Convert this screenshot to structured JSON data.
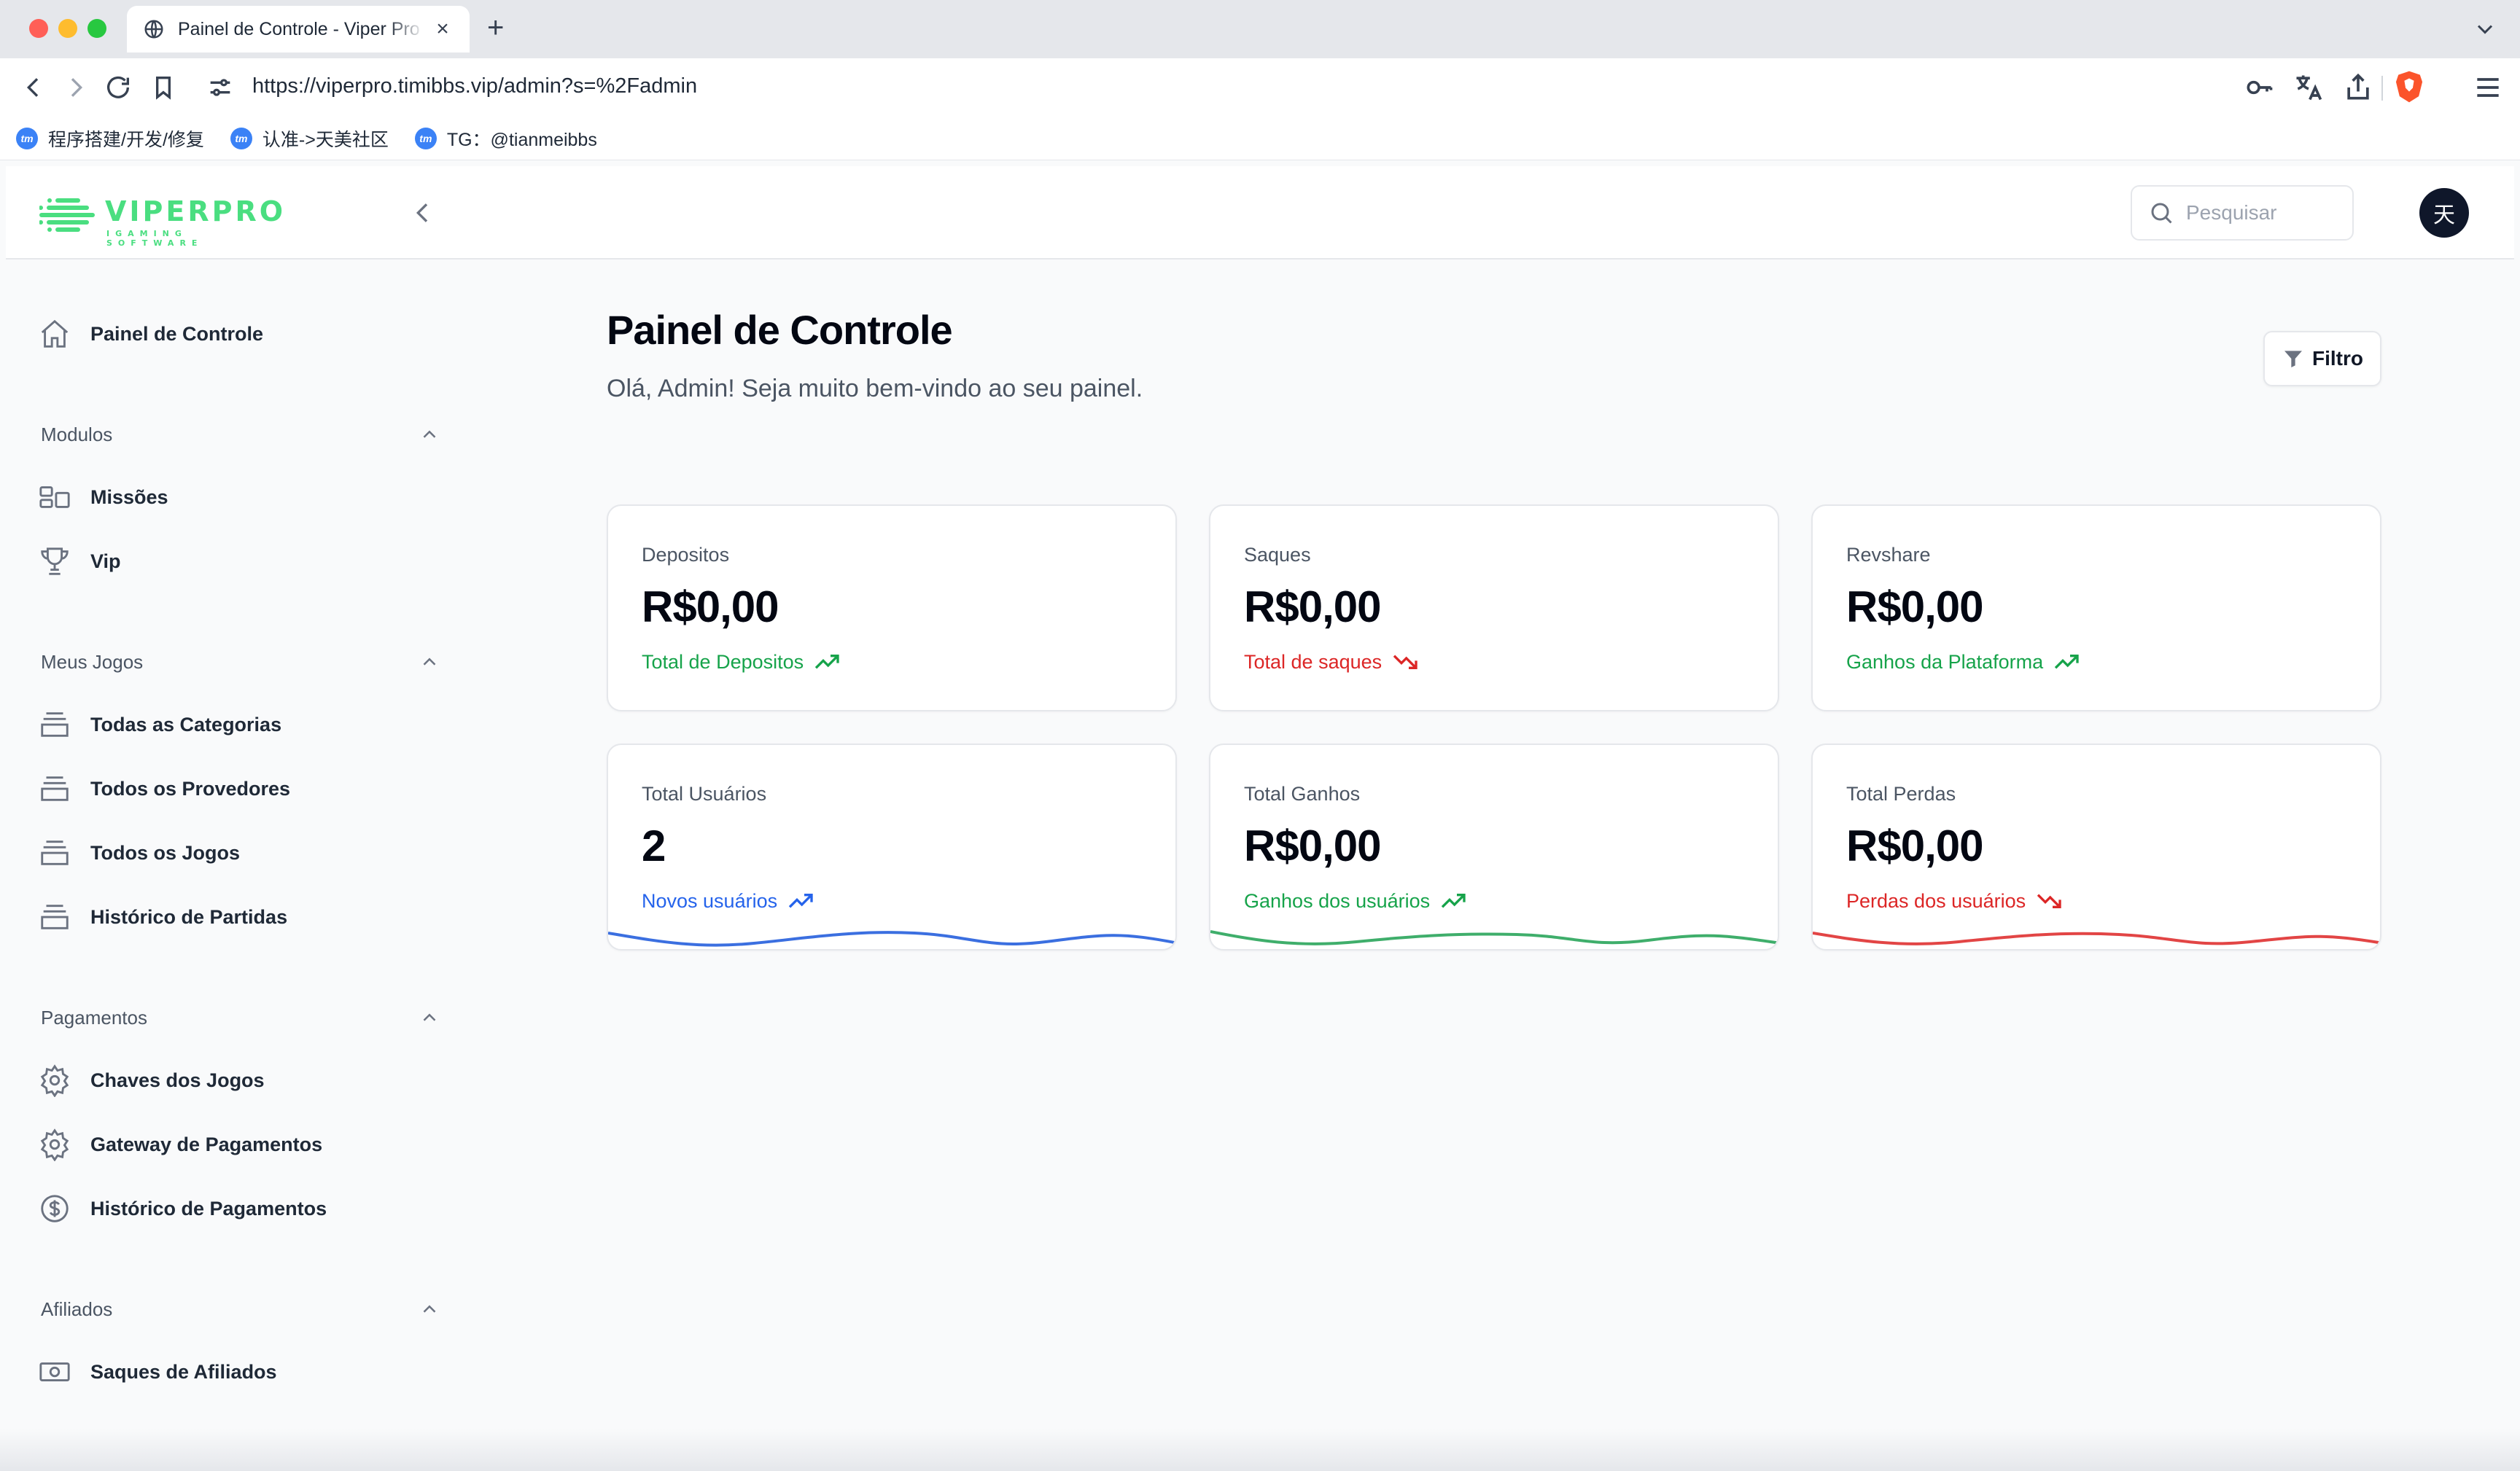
{
  "browser": {
    "tab_title": "Painel de Controle - Viper Pro",
    "new_tab": "+",
    "close": "×",
    "url": "https://viperpro.timibbs.vip/admin?s=%2Fadmin",
    "bookmarks": [
      {
        "label": "程序搭建/开发/修复"
      },
      {
        "label": "认准->天美社区"
      },
      {
        "label": "TG：@tianmeibbs"
      }
    ]
  },
  "header": {
    "logo_text": "VIPERPRO",
    "logo_sub": "IGAMING SOFTWARE",
    "search_placeholder": "Pesquisar",
    "avatar_initial": "天"
  },
  "sidebar": {
    "dashboard": "Painel de Controle",
    "sections": [
      {
        "title": "Modulos",
        "items": [
          "Missões",
          "Vip"
        ]
      },
      {
        "title": "Meus Jogos",
        "items": [
          "Todas as Categorias",
          "Todos os Provedores",
          "Todos os Jogos",
          "Histórico de Partidas"
        ]
      },
      {
        "title": "Pagamentos",
        "items": [
          "Chaves dos Jogos",
          "Gateway de Pagamentos",
          "Histórico de Pagamentos"
        ]
      },
      {
        "title": "Afiliados",
        "items": [
          "Saques de Afiliados"
        ]
      }
    ]
  },
  "main": {
    "title": "Painel de Controle",
    "subtitle": "Olá, Admin! Seja muito bem-vindo ao seu painel.",
    "filter_label": "Filtro",
    "cards": [
      {
        "label": "Depositos",
        "value": "R$0,00",
        "footer": "Total de Depositos",
        "trend": "up",
        "color": "#16a34a"
      },
      {
        "label": "Saques",
        "value": "R$0,00",
        "footer": "Total de saques",
        "trend": "down",
        "color": "#dc2626"
      },
      {
        "label": "Revshare",
        "value": "R$0,00",
        "footer": "Ganhos da Plataforma",
        "trend": "up",
        "color": "#16a34a"
      },
      {
        "label": "Total Usuários",
        "value": "2",
        "footer": "Novos usuários",
        "trend": "up",
        "color": "#2563eb"
      },
      {
        "label": "Total Ganhos",
        "value": "R$0,00",
        "footer": "Ganhos dos usuários",
        "trend": "up",
        "color": "#16a34a"
      },
      {
        "label": "Total Perdas",
        "value": "R$0,00",
        "footer": "Perdas dos usuários",
        "trend": "down",
        "color": "#dc2626"
      }
    ]
  },
  "colors": {
    "brand_green": "#4ade80",
    "up": "#16a34a",
    "down": "#dc2626",
    "blue": "#2563eb",
    "spark_blue": "#3b6fe0",
    "spark_green": "#3fae6b",
    "spark_red": "#e24545"
  }
}
